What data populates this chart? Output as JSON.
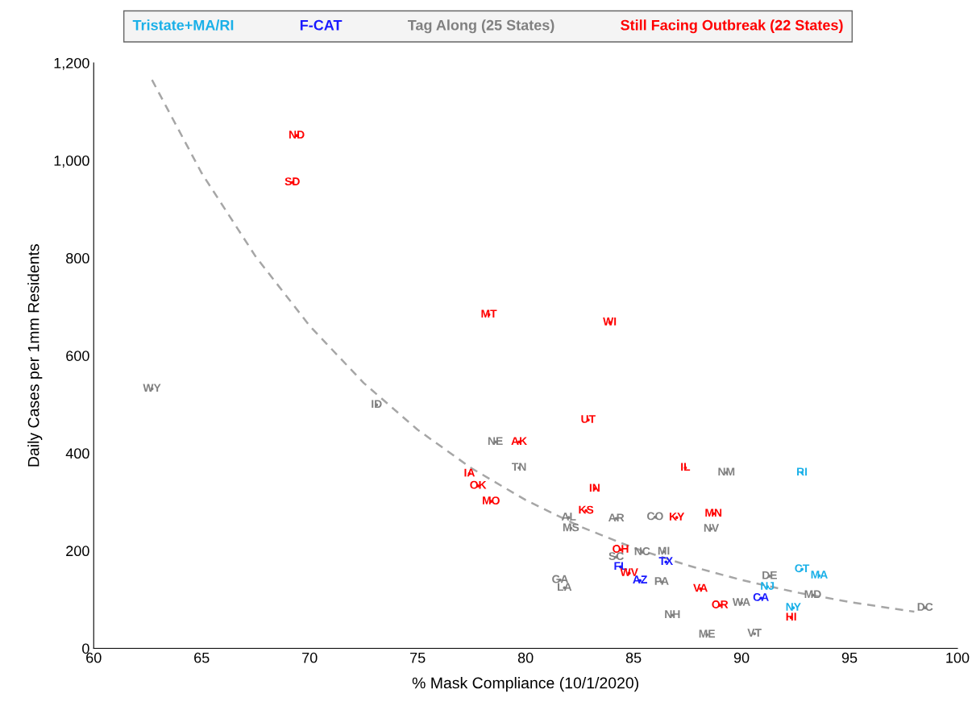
{
  "chart_data": {
    "type": "scatter",
    "xlabel": "% Mask Compliance (10/1/2020)",
    "ylabel": "Daily Cases per 1mm Residents",
    "xlim": [
      60,
      100
    ],
    "ylim": [
      0,
      1200
    ],
    "xticks": [
      60,
      65,
      70,
      75,
      80,
      85,
      90,
      95,
      100
    ],
    "yticks": [
      0,
      200,
      400,
      600,
      800,
      {
        "value": 1000,
        "label": "1,000"
      },
      {
        "value": 1200,
        "label": "1,200"
      }
    ],
    "grid": false,
    "legend": "top",
    "marker": "circle",
    "series": [
      {
        "name": "Tristate+MA/RI",
        "color": "#1ab0e8",
        "x": [
          92.8,
          92.8,
          93.6,
          92.4,
          91.2
        ],
        "values": [
          360,
          162,
          149,
          83,
          126
        ],
        "value_labels": [
          "RI",
          "CT",
          "MA",
          "NY",
          "NJ"
        ]
      },
      {
        "name": "F-CAT",
        "color": "#1a1aff",
        "x": [
          84.4,
          90.9,
          85.3,
          86.5
        ],
        "values": [
          167,
          103,
          139,
          177
        ],
        "value_labels": [
          "FL",
          "CA",
          "AZ",
          "TX"
        ]
      },
      {
        "name": "Tag Along (25 States)",
        "color": "#808080",
        "x": [
          62.7,
          73.1,
          78.6,
          79.7,
          82.0,
          82.1,
          84.2,
          86.0,
          85.4,
          86.4,
          84.2,
          89.3,
          88.6,
          81.6,
          81.8,
          86.3,
          86.8,
          88.4,
          90.6,
          90.0,
          93.3,
          98.5,
          91.3
        ],
        "values": [
          532,
          499,
          423,
          370,
          268,
          246,
          266,
          269,
          197,
          198,
          187,
          360,
          245,
          140,
          124,
          136,
          68,
          28,
          30,
          93,
          109,
          83,
          148
        ],
        "value_labels": [
          "WY",
          "ID",
          "NE",
          "TN",
          "AL",
          "MS",
          "AR",
          "CO",
          "NC",
          "MI",
          "SC",
          "NM",
          "NV",
          "GA",
          "LA",
          "PA",
          "NH",
          "ME",
          "VT",
          "WA",
          "MD",
          "DC",
          "DE"
        ]
      },
      {
        "name": "Still Facing Outbreak (22 States)",
        "color": "#ff0000",
        "x": [
          69.4,
          69.2,
          78.3,
          83.9,
          82.9,
          79.7,
          87.4,
          77.4,
          77.8,
          78.4,
          83.2,
          82.8,
          87.0,
          88.7,
          84.4,
          84.8,
          88.1,
          89.0,
          92.3
        ],
        "values": [
          1051,
          955,
          684,
          668,
          468,
          423,
          370,
          358,
          333,
          301,
          327,
          282,
          268,
          276,
          202,
          154,
          122,
          88,
          63
        ],
        "value_labels": [
          "ND",
          "SD",
          "MT",
          "WI",
          "UT",
          "AK",
          "IL",
          "IA",
          "OK",
          "MO",
          "IN",
          "KS",
          "KY",
          "MN",
          "OH",
          "WV",
          "VA",
          "OR",
          "HI"
        ]
      },
      {
        "type": "line",
        "marker": "none",
        "line_style": "dashed",
        "color": "#a6a6a6",
        "x": [
          62.7,
          65,
          67.5,
          70,
          72.5,
          75,
          77.5,
          80,
          82.5,
          85,
          87.5,
          90,
          92.5,
          95,
          98
        ],
        "values": [
          1165,
          974,
          803,
          661,
          544,
          448,
          369,
          304,
          250,
          206,
          170,
          140,
          115,
          95,
          75
        ]
      }
    ]
  }
}
